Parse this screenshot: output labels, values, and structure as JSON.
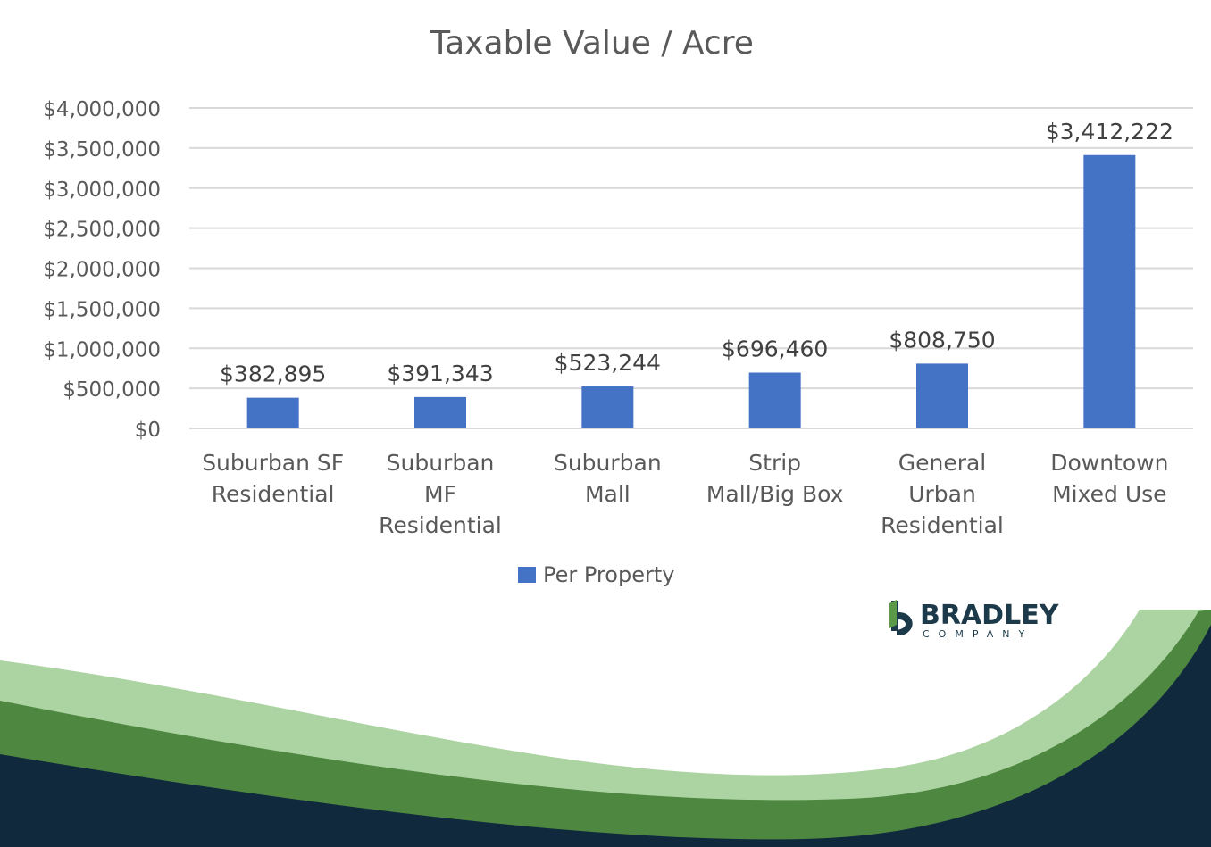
{
  "chart_data": {
    "type": "bar",
    "title": "Taxable Value / Acre",
    "categories": [
      [
        "Suburban SF",
        "Residential"
      ],
      [
        "Suburban",
        "MF",
        "Residential"
      ],
      [
        "Suburban",
        "Mall"
      ],
      [
        "Strip",
        "Mall/Big Box"
      ],
      [
        "General",
        "Urban",
        "Residential"
      ],
      [
        "Downtown",
        "Mixed Use"
      ]
    ],
    "series": [
      {
        "name": "Per Property",
        "color": "#4472c4",
        "values": [
          382895,
          391343,
          523244,
          696460,
          808750,
          3412222
        ],
        "data_labels": [
          "$382,895",
          "$391,343",
          "$523,244",
          "$696,460",
          "$808,750",
          "$3,412,222"
        ]
      }
    ],
    "ylim": [
      0,
      4000000
    ],
    "y_ticks": [
      0,
      500000,
      1000000,
      1500000,
      2000000,
      2500000,
      3000000,
      3500000,
      4000000
    ],
    "y_tick_labels": [
      "$0",
      "$500,000",
      "$1,000,000",
      "$1,500,000",
      "$2,000,000",
      "$2,500,000",
      "$3,000,000",
      "$3,500,000",
      "$4,000,000"
    ],
    "grid": true,
    "legend": "bottom"
  },
  "branding": {
    "name": "BRADLEY",
    "sub": "COMPANY",
    "colors": {
      "navy": "#11293d",
      "dark_green": "#4e8740",
      "light_green": "#acd3a2"
    }
  }
}
